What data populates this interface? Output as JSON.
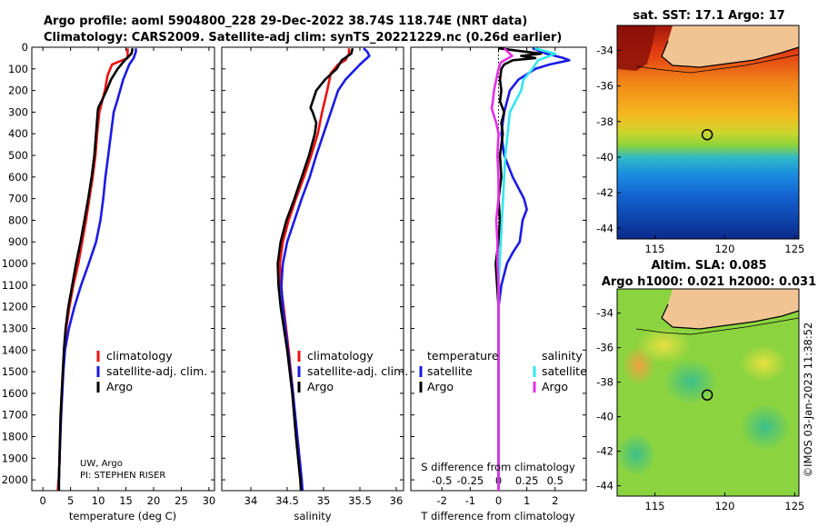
{
  "header": {
    "line1": "Argo profile: aoml 5904800_228 29-Dec-2022 38.74S 118.74E (NRT data)",
    "line2": "Climatology: CARS2009. Satellite-adj clim: synTS_20221229.nc (0.26d earlier)"
  },
  "credits": {
    "line1": "UW, Argo",
    "line2": "PI: STEPHEN RISER",
    "watermark": "©IMOS 03-Jan-2023 11:38:52"
  },
  "colors": {
    "climatology": "#ee1111",
    "satellite": "#1a1ae6",
    "argo": "#000000",
    "sat_salinity": "#33e6f0",
    "argo_salinity": "#e62ee6"
  },
  "chart_data": [
    {
      "type": "line",
      "id": "temperature",
      "xlabel": "temperature (deg C)",
      "xlim": [
        -2,
        31
      ],
      "xticks": [
        0,
        5,
        10,
        15,
        20,
        25,
        30
      ],
      "ylim": [
        2050,
        0
      ],
      "yticks": [
        0,
        100,
        200,
        300,
        400,
        500,
        600,
        700,
        800,
        900,
        1000,
        1100,
        1200,
        1300,
        1400,
        1500,
        1600,
        1700,
        1800,
        1900,
        2000
      ],
      "legend": [
        "climatology",
        "satellite-adj. clim.",
        "Argo"
      ],
      "legend_location": "lower-right",
      "series": [
        {
          "name": "climatology",
          "color_key": "climatology",
          "y": [
            5,
            50,
            80,
            130,
            200,
            300,
            400,
            500,
            600,
            700,
            800,
            900,
            1000,
            1100,
            1200,
            1300,
            1400,
            1500,
            1700,
            1900,
            1990,
            2010,
            2050
          ],
          "x": [
            15.3,
            15.3,
            12.5,
            11.7,
            11.2,
            10.2,
            9.8,
            9.5,
            9.0,
            8.4,
            7.8,
            7.1,
            6.4,
            5.5,
            4.8,
            4.2,
            3.9,
            3.6,
            3.2,
            3.0,
            2.9,
            2.8,
            2.7
          ]
        },
        {
          "name": "satellite-adj. clim.",
          "color_key": "satellite",
          "y": [
            5,
            20,
            50,
            80,
            150,
            250,
            300,
            400,
            500,
            600,
            700,
            800,
            900,
            1000,
            1100,
            1200,
            1300,
            1400,
            1500,
            1700,
            1900,
            2000,
            2050
          ],
          "x": [
            16.8,
            16.8,
            16.4,
            15.6,
            14.5,
            13.4,
            12.8,
            12.3,
            11.8,
            11.3,
            10.9,
            10.4,
            9.6,
            8.3,
            6.9,
            5.7,
            4.7,
            4.0,
            3.7,
            3.3,
            3.0,
            2.9,
            2.9
          ]
        },
        {
          "name": "Argo",
          "color_key": "argo",
          "y": [
            5,
            30,
            60,
            100,
            150,
            200,
            250,
            280,
            300,
            400,
            500,
            600,
            700,
            800,
            900,
            1000,
            1100,
            1200,
            1300,
            1400,
            1500,
            1700,
            1900,
            2000,
            2050
          ],
          "x": [
            16.2,
            16.0,
            14.8,
            13.5,
            12.3,
            11.5,
            10.6,
            10.0,
            9.9,
            9.6,
            9.3,
            8.8,
            8.2,
            7.5,
            6.8,
            6.0,
            5.3,
            4.6,
            4.1,
            3.8,
            3.6,
            3.2,
            3.0,
            2.9,
            2.9
          ]
        }
      ]
    },
    {
      "type": "line",
      "id": "salinity",
      "xlabel": "salinity",
      "xlim": [
        33.6,
        36.1
      ],
      "xticks": [
        34,
        34.5,
        35,
        35.5,
        36
      ],
      "xticklabels": [
        "34",
        "34.5",
        "35",
        "35.5",
        "36"
      ],
      "ylim": [
        2050,
        0
      ],
      "legend": [
        "climatology",
        "satellite-adj. clim.",
        "Argo"
      ],
      "legend_location": "lower-right",
      "series": [
        {
          "name": "climatology",
          "color_key": "climatology",
          "y": [
            5,
            30,
            60,
            80,
            120,
            200,
            300,
            400,
            500,
            600,
            700,
            800,
            900,
            1000,
            1100,
            1200,
            1400,
            1600,
            1800,
            2000,
            2050
          ],
          "x": [
            35.35,
            35.35,
            35.3,
            35.2,
            35.1,
            35.05,
            34.98,
            34.92,
            34.83,
            34.73,
            34.62,
            34.52,
            34.44,
            34.4,
            34.41,
            34.45,
            34.52,
            34.58,
            34.63,
            34.68,
            34.69
          ]
        },
        {
          "name": "satellite-adj. clim.",
          "color_key": "satellite",
          "y": [
            5,
            20,
            40,
            80,
            150,
            200,
            250,
            300,
            400,
            500,
            600,
            700,
            800,
            900,
            1000,
            1100,
            1200,
            1400,
            1600,
            1800,
            2000,
            2050
          ],
          "x": [
            35.55,
            35.6,
            35.63,
            35.5,
            35.3,
            35.2,
            35.15,
            35.1,
            35.0,
            34.9,
            34.81,
            34.7,
            34.6,
            34.5,
            34.44,
            34.42,
            34.44,
            34.51,
            34.58,
            34.64,
            34.7,
            34.71
          ]
        },
        {
          "name": "Argo",
          "color_key": "argo",
          "y": [
            5,
            30,
            60,
            100,
            150,
            200,
            250,
            280,
            300,
            350,
            400,
            500,
            600,
            700,
            800,
            900,
            1000,
            1100,
            1200,
            1400,
            1600,
            1800,
            2000,
            2050
          ],
          "x": [
            35.4,
            35.38,
            35.25,
            35.18,
            35.02,
            34.9,
            34.85,
            34.82,
            34.85,
            34.9,
            34.88,
            34.8,
            34.7,
            34.6,
            34.49,
            34.41,
            34.37,
            34.38,
            34.41,
            34.5,
            34.57,
            34.62,
            34.68,
            34.69
          ]
        }
      ]
    },
    {
      "type": "line",
      "id": "difference",
      "xlabel": "T difference from climatology",
      "xlabel_top": "S difference from climatology",
      "xlim": [
        -3.1,
        3.1
      ],
      "xticks": [
        -2,
        -1,
        0,
        1,
        2
      ],
      "xticks_top": [
        -0.5,
        -0.25,
        0,
        0.25,
        0.5
      ],
      "xticklabels_top": [
        "-0.5",
        "-0.25",
        "0",
        "0.25",
        "0.5"
      ],
      "zero_line": "dotted",
      "ylim": [
        2050,
        0
      ],
      "legend_temperature_title": "temperature",
      "legend_salinity_title": "salinity",
      "legend_temperature": [
        "satellite",
        "Argo"
      ],
      "legend_salinity": [
        "satellite",
        "Argo"
      ],
      "legend_location": "lower-right",
      "series": [
        {
          "name": "T satellite",
          "color_key": "satellite",
          "y": [
            5,
            30,
            50,
            60,
            80,
            100,
            150,
            200,
            300,
            400,
            500,
            600,
            700,
            750,
            800,
            850,
            900,
            950,
            1000,
            1100,
            1200,
            1400,
            1600,
            1800,
            2000,
            2050
          ],
          "x": [
            1.2,
            1.7,
            2.3,
            2.5,
            1.8,
            1.3,
            0.7,
            0.4,
            0.2,
            0.1,
            0.2,
            0.5,
            0.9,
            1.0,
            0.85,
            0.8,
            0.75,
            0.5,
            0.3,
            0.1,
            0.0,
            0.0,
            0.0,
            0.0,
            0.0,
            0.0
          ]
        },
        {
          "name": "T Argo",
          "color_key": "argo",
          "y": [
            5,
            30,
            40,
            50,
            60,
            80,
            100,
            150,
            200,
            250,
            300,
            350,
            400,
            500,
            600,
            700,
            800,
            900,
            1000,
            1100,
            1200,
            1500,
            1800,
            2000,
            2050
          ],
          "x": [
            0.0,
            1.5,
            0.8,
            1.3,
            0.5,
            0.2,
            0.1,
            0.05,
            0.1,
            0.05,
            0.2,
            0.1,
            0.15,
            0.05,
            0.1,
            0.0,
            0.05,
            0.0,
            -0.1,
            -0.05,
            0.0,
            0.0,
            0.0,
            0.0,
            0.0
          ]
        },
        {
          "name": "S satellite",
          "color_key": "sat_salinity",
          "y": [
            5,
            30,
            60,
            100,
            150,
            200,
            250,
            300,
            400,
            500,
            600,
            700,
            800,
            900,
            1000,
            1100,
            1200,
            1400,
            1600,
            1800,
            2000,
            2050
          ],
          "x": [
            0.32,
            0.5,
            0.35,
            0.3,
            0.22,
            0.2,
            0.15,
            0.1,
            0.08,
            0.06,
            0.05,
            0.04,
            0.03,
            0.02,
            0.01,
            0.0,
            0.0,
            0.0,
            0.0,
            0.0,
            0.0,
            0.0
          ]
        },
        {
          "name": "S Argo",
          "color_key": "argo_salinity",
          "y": [
            5,
            40,
            70,
            100,
            150,
            200,
            250,
            280,
            300,
            350,
            400,
            500,
            600,
            700,
            800,
            900,
            1000,
            1100,
            1200,
            1400,
            1600,
            1800,
            2000,
            2050
          ],
          "x": [
            0.05,
            0.12,
            0.02,
            0.0,
            -0.02,
            -0.04,
            -0.05,
            -0.06,
            -0.05,
            -0.02,
            0.0,
            -0.01,
            0.0,
            0.0,
            -0.02,
            -0.01,
            -0.01,
            0.0,
            0.0,
            0.0,
            0.0,
            0.0,
            0.0,
            0.0
          ]
        }
      ]
    },
    {
      "type": "heatmap",
      "id": "sst_map",
      "title": "sat. SST: 17.1 Argo: 17",
      "xlim": [
        112.3,
        125.3
      ],
      "ylim": [
        -44.6,
        -32.6
      ],
      "xticks": [
        115,
        120,
        125
      ],
      "yticks": [
        -34,
        -36,
        -38,
        -40,
        -42,
        -44
      ],
      "argo_position": [
        118.74,
        -38.74
      ]
    },
    {
      "type": "heatmap",
      "id": "sla_map",
      "title": "Altim. SLA: 0.085",
      "subtitle": "Argo h1000: 0.021 h2000: 0.031",
      "xlim": [
        112.3,
        125.3
      ],
      "ylim": [
        -44.6,
        -32.6
      ],
      "xticks": [
        115,
        120,
        125
      ],
      "yticks": [
        -34,
        -36,
        -38,
        -40,
        -42,
        -44
      ],
      "argo_position": [
        118.74,
        -38.74
      ]
    }
  ]
}
